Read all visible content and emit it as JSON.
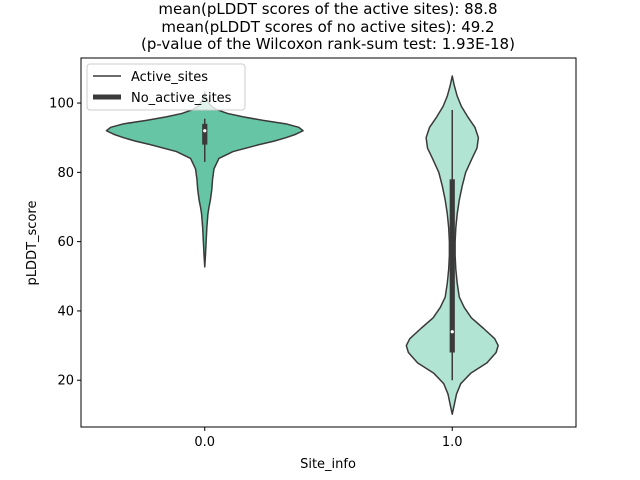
{
  "chart_data": {
    "type": "violin",
    "title_lines": [
      "mean(pLDDT scores of the active sites): 88.8",
      "mean(pLDDT scores of no active sites): 49.2",
      "(p-value of the Wilcoxon rank-sum test: 1.93E-18)"
    ],
    "xlabel": "Site_info",
    "ylabel": "pLDDT_score",
    "categories": [
      "0.0",
      "1.0"
    ],
    "ylim": [
      6.5,
      113
    ],
    "yticks": [
      20,
      40,
      60,
      80,
      100
    ],
    "legend": {
      "placement": "top-left",
      "entries": [
        "Active_sites",
        "No_active_sites"
      ]
    },
    "colors": {
      "violin_0": "#66c5a5",
      "violin_1": "#b2e4d4",
      "edge": "#3a3a3a",
      "box": "#3a3a3a",
      "median": "#ffffff"
    },
    "series": [
      {
        "name": "0.0",
        "stats": {
          "median": 92,
          "q1": 88,
          "q3": 94,
          "whisker_low": 83,
          "whisker_high": 95.5
        },
        "density": [
          [
            52.7,
            0.0
          ],
          [
            56,
            0.007
          ],
          [
            60,
            0.014
          ],
          [
            64,
            0.021
          ],
          [
            68,
            0.032
          ],
          [
            70,
            0.043
          ],
          [
            72,
            0.057
          ],
          [
            75,
            0.071
          ],
          [
            78,
            0.079
          ],
          [
            81,
            0.093
          ],
          [
            84,
            0.143
          ],
          [
            86,
            0.286
          ],
          [
            88,
            0.55
          ],
          [
            89,
            0.7
          ],
          [
            90,
            0.82
          ],
          [
            91,
            0.92
          ],
          [
            92,
            0.993
          ],
          [
            93,
            0.95
          ],
          [
            94,
            0.82
          ],
          [
            95,
            0.59
          ],
          [
            96,
            0.39
          ],
          [
            97,
            0.23
          ],
          [
            98,
            0.13
          ],
          [
            99,
            0.07
          ],
          [
            100,
            0.043
          ],
          [
            101,
            0.021
          ],
          [
            102,
            0.007
          ],
          [
            103.2,
            0.0
          ]
        ]
      },
      {
        "name": "1.0",
        "stats": {
          "median": 34,
          "q1": 28,
          "q3": 78,
          "whisker_low": 20,
          "whisker_high": 98
        },
        "density": [
          [
            10.2,
            0.0
          ],
          [
            13,
            0.021
          ],
          [
            16,
            0.043
          ],
          [
            19,
            0.086
          ],
          [
            22,
            0.186
          ],
          [
            25,
            0.35
          ],
          [
            28,
            0.443
          ],
          [
            30,
            0.464
          ],
          [
            32,
            0.429
          ],
          [
            35,
            0.314
          ],
          [
            38,
            0.193
          ],
          [
            41,
            0.121
          ],
          [
            44,
            0.071
          ],
          [
            48,
            0.05
          ],
          [
            52,
            0.036
          ],
          [
            56,
            0.029
          ],
          [
            60,
            0.029
          ],
          [
            64,
            0.036
          ],
          [
            68,
            0.05
          ],
          [
            72,
            0.071
          ],
          [
            76,
            0.1
          ],
          [
            80,
            0.136
          ],
          [
            84,
            0.2
          ],
          [
            87,
            0.25
          ],
          [
            90,
            0.264
          ],
          [
            93,
            0.229
          ],
          [
            96,
            0.157
          ],
          [
            99,
            0.093
          ],
          [
            102,
            0.05
          ],
          [
            105,
            0.021
          ],
          [
            107.8,
            0.0
          ]
        ]
      }
    ]
  }
}
